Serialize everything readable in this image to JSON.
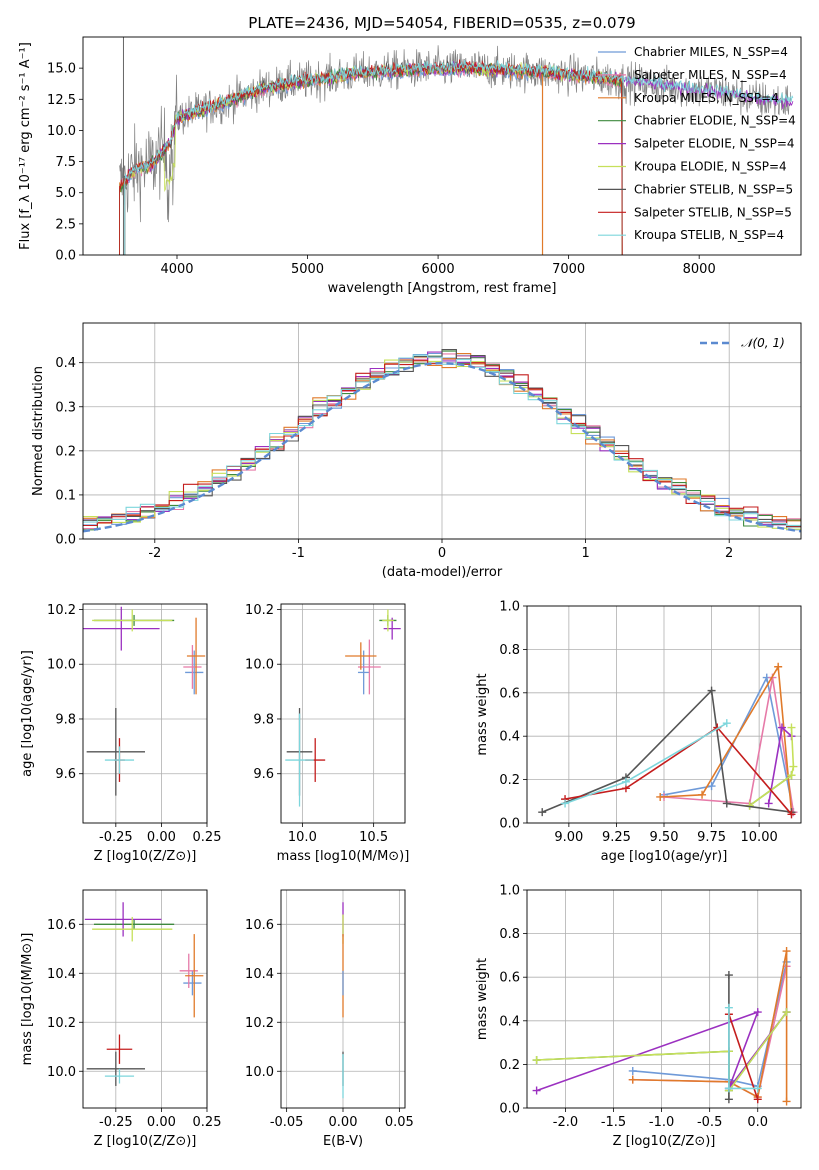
{
  "colors": {
    "CM": "#6f9ad8",
    "SM": "#e67aa8",
    "KM": "#e07a2a",
    "CE": "#3e8a3e",
    "SE": "#9b30c0",
    "KE": "#c6e05a",
    "CS": "#555555",
    "SS": "#c41d1d",
    "KS": "#7dd6dc",
    "data": "#808080",
    "normal": "#5b8ad0"
  },
  "chart_data": [
    {
      "id": "spectrum",
      "type": "line",
      "title": "PLATE=2436, MJD=54054, FIBERID=0535, z=0.079",
      "xlabel": "wavelength [Angstrom, rest frame]",
      "ylabel": "Flux [f_λ 10⁻¹⁷ erg cm⁻² s⁻¹ A⁻¹]",
      "xlim": [
        3280,
        8780
      ],
      "ylim": [
        0,
        17.5
      ],
      "xticks": [
        4000,
        5000,
        6000,
        7000,
        8000
      ],
      "yticks": [
        0.0,
        2.5,
        5.0,
        7.5,
        10.0,
        12.5,
        15.0
      ],
      "legend_position": "right",
      "continuum_knots": [
        [
          3560,
          5.5
        ],
        [
          3700,
          7.0
        ],
        [
          3800,
          7.2
        ],
        [
          3950,
          9.0
        ],
        [
          4000,
          11.0
        ],
        [
          4300,
          12.0
        ],
        [
          4700,
          13.5
        ],
        [
          5000,
          14.0
        ],
        [
          5400,
          14.6
        ],
        [
          5800,
          14.9
        ],
        [
          6200,
          15.0
        ],
        [
          6600,
          14.8
        ],
        [
          7000,
          14.5
        ],
        [
          7400,
          14.0
        ],
        [
          7800,
          13.5
        ],
        [
          8200,
          13.0
        ],
        [
          8500,
          12.4
        ],
        [
          8700,
          12.3
        ]
      ],
      "series": [
        {
          "name": "Chabrier MILES, N_SSP=4",
          "key": "CM"
        },
        {
          "name": "Salpeter MILES, N_SSP=4",
          "key": "SM"
        },
        {
          "name": "Kroupa MILES, N_SSP=4",
          "key": "KM"
        },
        {
          "name": "Chabrier ELODIE, N_SSP=4",
          "key": "CE"
        },
        {
          "name": "Salpeter ELODIE, N_SSP=4",
          "key": "SE"
        },
        {
          "name": "Kroupa ELODIE, N_SSP=4",
          "key": "KE"
        },
        {
          "name": "Chabrier STELIB, N_SSP=5",
          "key": "CS"
        },
        {
          "name": "Salpeter STELIB, N_SSP=5",
          "key": "SS"
        },
        {
          "name": "Kroupa STELIB, N_SSP=4",
          "key": "KS"
        }
      ]
    },
    {
      "id": "residuals",
      "type": "line",
      "xlabel": "(data-model)/error",
      "ylabel": "Normed distribution",
      "xlim": [
        -2.5,
        2.5
      ],
      "ylim": [
        0,
        0.49
      ],
      "xticks": [
        -2,
        -1,
        0,
        1,
        2
      ],
      "yticks": [
        0.0,
        0.1,
        0.2,
        0.3,
        0.4
      ],
      "legend": "𝒩(0, 1)",
      "legend_position": "upper right",
      "bin_width": 0.1
    },
    {
      "id": "age_vs_Z",
      "type": "scatter",
      "xlabel": "Z [log10(Z/Z⊙)]",
      "ylabel": "age [log10(age/yr)]",
      "xlim": [
        -0.43,
        0.25
      ],
      "ylim": [
        9.42,
        10.22
      ],
      "xticks": [
        -0.25,
        0.0,
        0.25
      ],
      "yticks": [
        9.6,
        9.8,
        10.0,
        10.2
      ],
      "points": [
        {
          "key": "CM",
          "x": 0.18,
          "y": 9.97,
          "dx": 0.05,
          "dy": 0.08
        },
        {
          "key": "SM",
          "x": 0.17,
          "y": 9.99,
          "dx": 0.05,
          "dy": 0.08
        },
        {
          "key": "KM",
          "x": 0.19,
          "y": 10.03,
          "dx": 0.05,
          "dy": 0.14
        },
        {
          "key": "CE",
          "x": -0.15,
          "y": 10.16,
          "dx": 0.22,
          "dy": 0.02
        },
        {
          "key": "SE",
          "x": -0.22,
          "y": 10.13,
          "dx": 0.21,
          "dy": 0.08
        },
        {
          "key": "KE",
          "x": -0.16,
          "y": 10.16,
          "dx": 0.22,
          "dy": 0.04
        },
        {
          "key": "CS",
          "x": -0.25,
          "y": 9.68,
          "dx": 0.16,
          "dy": 0.16
        },
        {
          "key": "SS",
          "x": -0.23,
          "y": 9.65,
          "dx": 0.03,
          "dy": 0.08
        },
        {
          "key": "KS",
          "x": -0.23,
          "y": 9.65,
          "dx": 0.08,
          "dy": 0.05
        }
      ]
    },
    {
      "id": "age_vs_mass",
      "type": "scatter",
      "xlabel": "mass [log10(M/M⊙)]",
      "ylabel": "",
      "xlim": [
        9.85,
        10.72
      ],
      "ylim": [
        9.42,
        10.22
      ],
      "xticks": [
        10.0,
        10.5
      ],
      "yticks": [
        9.6,
        9.8,
        10.0,
        10.2
      ],
      "points": [
        {
          "key": "CM",
          "x": 10.43,
          "y": 9.97,
          "dx": 0.04,
          "dy": 0.08
        },
        {
          "key": "SM",
          "x": 10.47,
          "y": 9.99,
          "dx": 0.08,
          "dy": 0.1
        },
        {
          "key": "KM",
          "x": 10.41,
          "y": 10.03,
          "dx": 0.11,
          "dy": 0.05
        },
        {
          "key": "CE",
          "x": 10.6,
          "y": 10.16,
          "dx": 0.06,
          "dy": 0.02
        },
        {
          "key": "SE",
          "x": 10.63,
          "y": 10.13,
          "dx": 0.06,
          "dy": 0.04
        },
        {
          "key": "KE",
          "x": 10.6,
          "y": 10.16,
          "dx": 0.04,
          "dy": 0.04
        },
        {
          "key": "CS",
          "x": 9.98,
          "y": 9.68,
          "dx": 0.09,
          "dy": 0.16
        },
        {
          "key": "SS",
          "x": 10.09,
          "y": 9.65,
          "dx": 0.07,
          "dy": 0.08
        },
        {
          "key": "KS",
          "x": 9.98,
          "y": 9.65,
          "dx": 0.1,
          "dy": 0.17
        }
      ]
    },
    {
      "id": "weight_vs_age",
      "type": "line",
      "xlabel": "age  [log10(age/yr)]",
      "ylabel": "mass weight",
      "xlim": [
        8.78,
        10.22
      ],
      "ylim": [
        0,
        1
      ],
      "xticks": [
        9.0,
        9.25,
        9.5,
        9.75,
        10.0
      ],
      "yticks": [
        0.0,
        0.2,
        0.4,
        0.6,
        0.8,
        1.0
      ],
      "series": [
        {
          "key": "CM",
          "points": [
            [
              9.5,
              0.13
            ],
            [
              9.75,
              0.17
            ],
            [
              10.04,
              0.67
            ],
            [
              10.18,
              0.05
            ]
          ]
        },
        {
          "key": "SM",
          "points": [
            [
              9.5,
              0.12
            ],
            [
              9.95,
              0.09
            ],
            [
              10.07,
              0.67
            ],
            [
              10.18,
              0.05
            ]
          ]
        },
        {
          "key": "KM",
          "points": [
            [
              9.48,
              0.12
            ],
            [
              9.7,
              0.13
            ],
            [
              10.1,
              0.72
            ],
            [
              10.17,
              0.05
            ]
          ]
        },
        {
          "key": "CE",
          "points": [
            [
              9.95,
              0.08
            ],
            [
              10.17,
              0.22
            ]
          ]
        },
        {
          "key": "SE",
          "points": [
            [
              10.05,
              0.09
            ],
            [
              10.12,
              0.44
            ],
            [
              10.17,
              0.4
            ]
          ]
        },
        {
          "key": "KE",
          "points": [
            [
              9.95,
              0.08
            ],
            [
              10.17,
              0.22
            ],
            [
              10.18,
              0.26
            ],
            [
              10.17,
              0.44
            ]
          ]
        },
        {
          "key": "CS",
          "points": [
            [
              8.86,
              0.05
            ],
            [
              9.3,
              0.21
            ],
            [
              9.75,
              0.61
            ],
            [
              9.83,
              0.09
            ],
            [
              10.17,
              0.05
            ]
          ]
        },
        {
          "key": "SS",
          "points": [
            [
              8.98,
              0.11
            ],
            [
              9.3,
              0.16
            ],
            [
              9.78,
              0.44
            ],
            [
              10.17,
              0.04
            ]
          ]
        },
        {
          "key": "KS",
          "points": [
            [
              8.98,
              0.09
            ],
            [
              9.3,
              0.19
            ],
            [
              9.83,
              0.46
            ]
          ]
        }
      ]
    },
    {
      "id": "mass_vs_Z",
      "type": "scatter",
      "xlabel": "Z [log10(Z/Z⊙)]",
      "ylabel": "mass [log10(M/M⊙)]",
      "xlim": [
        -0.43,
        0.25
      ],
      "ylim": [
        9.85,
        10.74
      ],
      "xticks": [
        -0.25,
        0.0,
        0.25
      ],
      "yticks": [
        10.0,
        10.2,
        10.4,
        10.6
      ],
      "points": [
        {
          "key": "CM",
          "x": 0.17,
          "y": 10.36,
          "dx": 0.05,
          "dy": 0.05
        },
        {
          "key": "SM",
          "x": 0.15,
          "y": 10.41,
          "dx": 0.05,
          "dy": 0.07
        },
        {
          "key": "KM",
          "x": 0.18,
          "y": 10.39,
          "dx": 0.05,
          "dy": 0.17
        },
        {
          "key": "CE",
          "x": -0.15,
          "y": 10.6,
          "dx": 0.22,
          "dy": 0.02
        },
        {
          "key": "SE",
          "x": -0.21,
          "y": 10.62,
          "dx": 0.21,
          "dy": 0.07
        },
        {
          "key": "KE",
          "x": -0.16,
          "y": 10.58,
          "dx": 0.22,
          "dy": 0.05
        },
        {
          "key": "CS",
          "x": -0.25,
          "y": 10.01,
          "dx": 0.16,
          "dy": 0.07
        },
        {
          "key": "SS",
          "x": -0.23,
          "y": 10.09,
          "dx": 0.07,
          "dy": 0.06
        },
        {
          "key": "KS",
          "x": -0.23,
          "y": 9.98,
          "dx": 0.08,
          "dy": 0.03
        }
      ]
    },
    {
      "id": "mass_vs_ebv",
      "type": "scatter",
      "xlabel": "E(B-V)",
      "ylabel": "",
      "xlim": [
        -0.055,
        0.055
      ],
      "ylim": [
        9.85,
        10.74
      ],
      "xticks": [
        -0.05,
        0.0,
        0.05
      ],
      "yticks": [
        10.0,
        10.2,
        10.4,
        10.6
      ],
      "points": [
        {
          "key": "SE",
          "x": 0.0,
          "y": 10.62,
          "dx": 0.0,
          "dy": 0.07
        },
        {
          "key": "KE",
          "x": 0.0,
          "y": 10.58,
          "dx": 0.0,
          "dy": 0.06
        },
        {
          "key": "KM",
          "x": 0.0,
          "y": 10.39,
          "dx": 0.0,
          "dy": 0.17
        },
        {
          "key": "CM",
          "x": 0.0,
          "y": 10.36,
          "dx": 0.0,
          "dy": 0.05
        },
        {
          "key": "CS",
          "x": 0.0,
          "y": 10.01,
          "dx": 0.0,
          "dy": 0.07
        },
        {
          "key": "KS",
          "x": 0.0,
          "y": 9.98,
          "dx": 0.0,
          "dy": 0.09
        }
      ]
    },
    {
      "id": "weight_vs_Z",
      "type": "line",
      "xlabel": "Z [log10(Z/Z⊙)]",
      "ylabel": "mass weight",
      "xlim": [
        -2.4,
        0.45
      ],
      "ylim": [
        0,
        1
      ],
      "xticks": [
        -2.0,
        -1.5,
        -1.0,
        -0.5,
        0.0
      ],
      "yticks": [
        0.0,
        0.2,
        0.4,
        0.6,
        0.8,
        1.0
      ],
      "series": [
        {
          "key": "CM",
          "points": [
            [
              -1.3,
              0.17
            ],
            [
              -0.3,
              0.13
            ],
            [
              0.0,
              0.1
            ],
            [
              0.3,
              0.67
            ]
          ]
        },
        {
          "key": "SM",
          "points": [
            [
              -1.3,
              0.13
            ],
            [
              -0.3,
              0.12
            ],
            [
              0.0,
              0.05
            ],
            [
              0.3,
              0.65
            ]
          ]
        },
        {
          "key": "KM",
          "points": [
            [
              -1.3,
              0.13
            ],
            [
              -0.3,
              0.12
            ],
            [
              0.0,
              0.05
            ],
            [
              0.3,
              0.72
            ],
            [
              0.3,
              0.03
            ]
          ]
        },
        {
          "key": "CE",
          "points": [
            [
              -2.3,
              0.22
            ],
            [
              -0.3,
              0.26
            ],
            [
              -0.3,
              0.08
            ],
            [
              0.3,
              0.44
            ]
          ]
        },
        {
          "key": "SE",
          "points": [
            [
              -2.3,
              0.08
            ],
            [
              0.0,
              0.44
            ],
            [
              -0.3,
              0.09
            ],
            [
              0.3,
              0.44
            ]
          ]
        },
        {
          "key": "KE",
          "points": [
            [
              -2.3,
              0.22
            ],
            [
              -0.3,
              0.26
            ],
            [
              -0.3,
              0.08
            ],
            [
              0.3,
              0.44
            ]
          ]
        },
        {
          "key": "CS",
          "points": [
            [
              -0.3,
              0.61
            ],
            [
              -0.3,
              0.04
            ]
          ]
        },
        {
          "key": "SS",
          "points": [
            [
              -0.3,
              0.43
            ],
            [
              0.0,
              0.04
            ]
          ]
        },
        {
          "key": "KS",
          "points": [
            [
              -0.3,
              0.46
            ],
            [
              -0.3,
              0.09
            ],
            [
              0.0,
              0.09
            ]
          ]
        }
      ]
    }
  ]
}
